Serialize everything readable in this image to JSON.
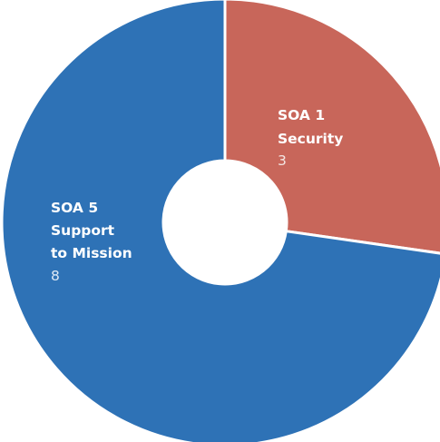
{
  "chart_data": {
    "type": "pie",
    "donut": true,
    "title": "",
    "legend": "none",
    "slices": [
      {
        "label_lines": [
          "SOA 1",
          "Security"
        ],
        "value": 3,
        "value_text": "3",
        "color": "#c8665a"
      },
      {
        "label_lines": [
          "SOA 5",
          "Support",
          "to Mission"
        ],
        "value": 8,
        "value_text": "8",
        "color": "#2e72b6"
      }
    ],
    "separator_color": "#ffffff"
  }
}
